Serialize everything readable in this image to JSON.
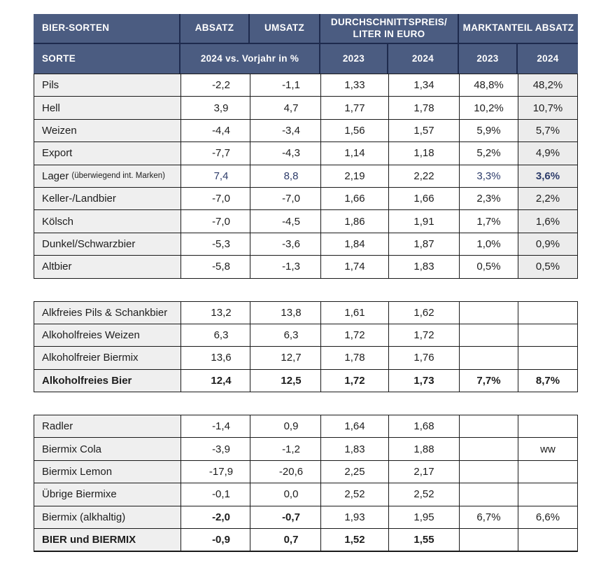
{
  "colors": {
    "header_bg": "#4b5c81",
    "header_divider": "#1e2a4d",
    "accent_navy": "#2d3c6a",
    "name_col_bg": "#efefef",
    "last_col_bg": "#ececec",
    "grid_border": "#1a1a1a"
  },
  "header": {
    "row1": {
      "col1": "BIER-SORTEN",
      "absatz": "ABSATZ",
      "umsatz": "UMSATZ",
      "price_group": "DURCHSCHNITTSPREIS/ LITER IN EURO",
      "share_group": "MARKTANTEIL ABSATZ"
    },
    "row2": {
      "col1": "SORTE",
      "change_span": "2024 vs. Vorjahr in %",
      "price_2023": "2023",
      "price_2024": "2024",
      "share_2023": "2023",
      "share_2024": "2024"
    }
  },
  "blocks": [
    {
      "id": "bier-sorten",
      "last_col_shaded": true,
      "rows": [
        {
          "label": "Pils",
          "values": [
            "-2,2",
            "-1,1",
            "1,33",
            "1,34",
            "48,8%",
            "48,2%"
          ]
        },
        {
          "label": "Hell",
          "values": [
            "3,9",
            "4,7",
            "1,77",
            "1,78",
            "10,2%",
            "10,7%"
          ]
        },
        {
          "label": "Weizen",
          "values": [
            "-4,4",
            "-3,4",
            "1,56",
            "1,57",
            "5,9%",
            "5,7%"
          ]
        },
        {
          "label": "Export",
          "values": [
            "-7,7",
            "-4,3",
            "1,14",
            "1,18",
            "5,2%",
            "4,9%"
          ]
        },
        {
          "label": "Lager",
          "note": "(überwiegend int. Marken)",
          "values": [
            "7,4",
            "8,8",
            "2,19",
            "2,22",
            "3,3%",
            "3,6%"
          ],
          "accent_cols": [
            0,
            1,
            4,
            5
          ],
          "bold_cols": [
            5
          ]
        },
        {
          "label": "Keller-/Landbier",
          "values": [
            "-7,0",
            "-7,0",
            "1,66",
            "1,66",
            "2,3%",
            "2,2%"
          ]
        },
        {
          "label": "Kölsch",
          "values": [
            "-7,0",
            "-4,5",
            "1,86",
            "1,91",
            "1,7%",
            "1,6%"
          ]
        },
        {
          "label": "Dunkel/Schwarzbier",
          "values": [
            "-5,3",
            "-3,6",
            "1,84",
            "1,87",
            "1,0%",
            "0,9%"
          ]
        },
        {
          "label": "Altbier",
          "values": [
            "-5,8",
            "-1,3",
            "1,74",
            "1,83",
            "0,5%",
            "0,5%"
          ]
        }
      ]
    },
    {
      "id": "alkoholfrei",
      "last_col_shaded": false,
      "rows": [
        {
          "label": "Alkfreies Pils & Schankbier",
          "values": [
            "13,2",
            "13,8",
            "1,61",
            "1,62",
            "",
            ""
          ]
        },
        {
          "label": "Alkoholfreies Weizen",
          "values": [
            "6,3",
            "6,3",
            "1,72",
            "1,72",
            "",
            ""
          ]
        },
        {
          "label": "Alkoholfreier Biermix",
          "values": [
            "13,6",
            "12,7",
            "1,78",
            "1,76",
            "",
            ""
          ]
        },
        {
          "label": "Alkoholfreies Bier",
          "label_bold": true,
          "values": [
            "12,4",
            "12,5",
            "1,72",
            "1,73",
            "7,7%",
            "8,7%"
          ],
          "bold_cols": [
            0,
            1,
            2,
            3,
            4,
            5
          ]
        }
      ]
    },
    {
      "id": "biermix",
      "last_col_shaded": false,
      "rows": [
        {
          "label": "Radler",
          "values": [
            "-1,4",
            "0,9",
            "1,64",
            "1,68",
            "",
            ""
          ]
        },
        {
          "label": "Biermix Cola",
          "values": [
            "-3,9",
            "-1,2",
            "1,83",
            "1,88",
            "",
            "ww"
          ]
        },
        {
          "label": "Biermix Lemon",
          "values": [
            "-17,9",
            "-20,6",
            "2,25",
            "2,17",
            "",
            ""
          ]
        },
        {
          "label": "Übrige Biermixe",
          "values": [
            "-0,1",
            "0,0",
            "2,52",
            "2,52",
            "",
            ""
          ]
        },
        {
          "label": "Biermix (alkhaltig)",
          "values": [
            "-2,0",
            "-0,7",
            "1,93",
            "1,95",
            "6,7%",
            "6,6%"
          ],
          "bold_cols": [
            0,
            1
          ]
        },
        {
          "label": "BIER und BIERMIX",
          "label_bold": true,
          "values": [
            "-0,9",
            "0,7",
            "1,52",
            "1,55",
            "",
            ""
          ],
          "bold_cols": [
            0,
            1,
            2,
            3
          ]
        }
      ]
    }
  ]
}
